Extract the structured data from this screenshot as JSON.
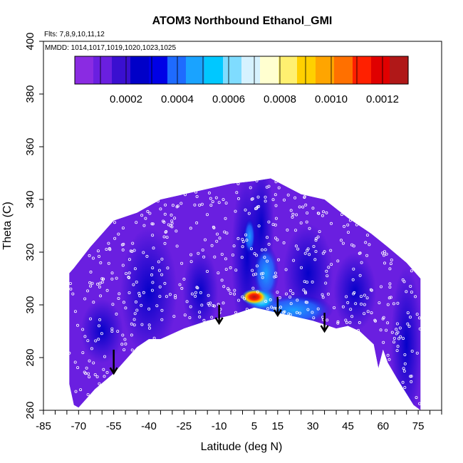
{
  "chart_data": {
    "type": "heatmap",
    "title": "ATOM3 Northbound Ethanol_GMI",
    "flights_note": "Flts: 7,8,9,10,11,12",
    "dates_note": "MMDD: 1014,1017,1019,1020,1023,1025",
    "xlabel": "Latitude (deg N)",
    "ylabel": "Theta (C)",
    "xlim": [
      -85,
      85
    ],
    "ylim": [
      260,
      400
    ],
    "x_ticks": [
      "-85",
      "-70",
      "-55",
      "-40",
      "-25",
      "-10",
      "5",
      "15",
      "30",
      "45",
      "60",
      "75"
    ],
    "x_tick_values": [
      -85,
      -70,
      -55,
      -40,
      -25,
      -10,
      5,
      15,
      30,
      45,
      60,
      75
    ],
    "y_ticks": [
      "260",
      "280",
      "300",
      "320",
      "340",
      "360",
      "380",
      "400"
    ],
    "y_tick_values": [
      260,
      280,
      300,
      320,
      340,
      360,
      380,
      400
    ],
    "colorbar": {
      "ticks": [
        "0.0002",
        "0.0004",
        "0.0006",
        "0.0008",
        "0.0010",
        "0.0012"
      ],
      "tick_values": [
        0.0002,
        0.0004,
        0.0006,
        0.0008,
        0.001,
        0.0012
      ],
      "range": [
        0,
        0.0013
      ],
      "colors": [
        "#8a2be2",
        "#6a1fe0",
        "#3a0fd0",
        "#0000c8",
        "#0000e6",
        "#1e6bff",
        "#1aa3ff",
        "#00c8ff",
        "#7fdcff",
        "#d6f2ff",
        "#ffffd0",
        "#fff070",
        "#ffd000",
        "#ffa500",
        "#ff7000",
        "#ff2000",
        "#e00000",
        "#b01818"
      ]
    },
    "field_envelope": {
      "top": [
        [
          -74,
          312
        ],
        [
          -72,
          314
        ],
        [
          -65,
          322
        ],
        [
          -55,
          332
        ],
        [
          -45,
          335
        ],
        [
          -35,
          340
        ],
        [
          -20,
          343
        ],
        [
          -5,
          346
        ],
        [
          5,
          347
        ],
        [
          12,
          348
        ],
        [
          25,
          342
        ],
        [
          35,
          340
        ],
        [
          45,
          333
        ],
        [
          55,
          327
        ],
        [
          62,
          322
        ],
        [
          70,
          316
        ],
        [
          76,
          310
        ]
      ],
      "bottom": [
        [
          76,
          260
        ],
        [
          73,
          262
        ],
        [
          66,
          272
        ],
        [
          62,
          278
        ],
        [
          60,
          283
        ],
        [
          58,
          276
        ],
        [
          56,
          285
        ],
        [
          50,
          290
        ],
        [
          45,
          292
        ],
        [
          40,
          291
        ],
        [
          30,
          294
        ],
        [
          20,
          296
        ],
        [
          10,
          298
        ],
        [
          5,
          299
        ],
        [
          -5,
          296
        ],
        [
          -15,
          294
        ],
        [
          -25,
          291
        ],
        [
          -35,
          287
        ],
        [
          -40,
          287
        ],
        [
          -45,
          284
        ],
        [
          -55,
          274
        ],
        [
          -63,
          268
        ],
        [
          -70,
          261
        ],
        [
          -72,
          262
        ],
        [
          -74,
          270
        ]
      ]
    },
    "hotspots": [
      {
        "lat": 5,
        "theta": 303,
        "value": 0.0012
      },
      {
        "lat": 4,
        "theta": 302,
        "value": 0.0009
      },
      {
        "lat": 10,
        "theta": 310,
        "value": 0.0005
      },
      {
        "lat": 15,
        "theta": 297,
        "value": 0.0004
      },
      {
        "lat": 25,
        "theta": 297,
        "value": 0.0003
      },
      {
        "lat": 0,
        "theta": 325,
        "value": 0.00025
      },
      {
        "lat": -40,
        "theta": 310,
        "value": 0.0002
      },
      {
        "lat": 50,
        "theta": 305,
        "value": 0.0002
      },
      {
        "lat": 70,
        "theta": 280,
        "value": 0.0002
      }
    ],
    "arrows": [
      {
        "lat": -55,
        "theta_top": 283,
        "theta_bottom": 274
      },
      {
        "lat": -10,
        "theta_top": 300,
        "theta_bottom": 293
      },
      {
        "lat": 15,
        "theta_top": 303,
        "theta_bottom": 296
      },
      {
        "lat": 35,
        "theta_top": 297,
        "theta_bottom": 290
      }
    ]
  }
}
